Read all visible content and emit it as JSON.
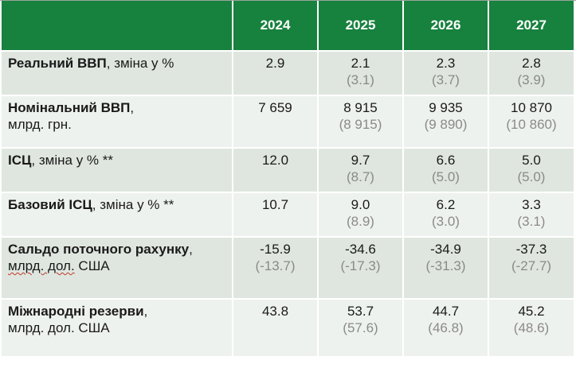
{
  "header": {
    "years": [
      "2024",
      "2025",
      "2026",
      "2027"
    ]
  },
  "rows": [
    {
      "label_bold": "Реальний ВВП",
      "label_rest": ", зміна у %",
      "label_line2": "",
      "values": [
        {
          "current": "2.9",
          "previous": ""
        },
        {
          "current": "2.1",
          "previous": "(3.1)"
        },
        {
          "current": "2.3",
          "previous": "(3.7)"
        },
        {
          "current": "2.8",
          "previous": "(3.9)"
        }
      ]
    },
    {
      "label_bold": "Номінальний ВВП",
      "label_rest": ",",
      "label_line2": "млрд. грн.",
      "values": [
        {
          "current": "7 659",
          "previous": ""
        },
        {
          "current": "8 915",
          "previous": "(8 915)"
        },
        {
          "current": "9 935",
          "previous": "(9 890)"
        },
        {
          "current": "10 870",
          "previous": "(10 860)"
        }
      ]
    },
    {
      "label_bold": "ІСЦ",
      "label_rest": ", зміна у % **",
      "label_line2": "",
      "values": [
        {
          "current": "12.0",
          "previous": ""
        },
        {
          "current": "9.7",
          "previous": "(8.7)"
        },
        {
          "current": "6.6",
          "previous": "(5.0)"
        },
        {
          "current": "5.0",
          "previous": "(5.0)"
        }
      ]
    },
    {
      "label_bold": "Базовий ІСЦ",
      "label_rest": ", зміна у % **",
      "label_line2": "",
      "values": [
        {
          "current": "10.7",
          "previous": ""
        },
        {
          "current": "9.0",
          "previous": "(8.9)"
        },
        {
          "current": "6.2",
          "previous": "(3.0)"
        },
        {
          "current": "3.3",
          "previous": "(3.1)"
        }
      ]
    },
    {
      "label_bold": "Сальдо поточного рахунку",
      "label_rest": ",",
      "label_line2_underlined": "млрд. дол.",
      "label_line2_tail": " США",
      "values": [
        {
          "current": "-15.9",
          "previous": "(-13.7)"
        },
        {
          "current": "-34.6",
          "previous": "(-17.3)"
        },
        {
          "current": "-34.9",
          "previous": "(-31.3)"
        },
        {
          "current": "-37.3",
          "previous": "(-27.7)"
        }
      ]
    },
    {
      "label_bold": "Міжнародні резерви",
      "label_rest": ",",
      "label_line2": "млрд. дол. США",
      "values": [
        {
          "current": "43.8",
          "previous": ""
        },
        {
          "current": "53.7",
          "previous": "(57.6)"
        },
        {
          "current": "44.7",
          "previous": "(46.8)"
        },
        {
          "current": "45.2",
          "previous": "(48.6)"
        }
      ]
    }
  ],
  "colors": {
    "header_green": "#17813e",
    "row_shaded": "#dfe6df",
    "row_plain": "#eef2ee",
    "previous_value_gray": "#8a8a8a"
  }
}
